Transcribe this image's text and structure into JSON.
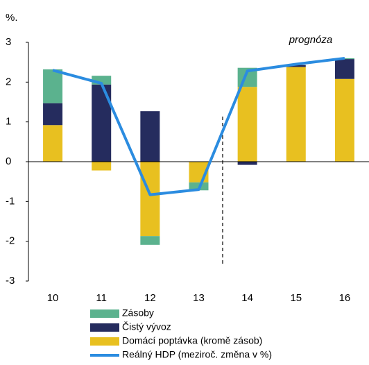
{
  "chart_data": {
    "type": "bar",
    "stacked": true,
    "unit_label": "%.",
    "annotation": "prognóza",
    "categories": [
      "10",
      "11",
      "12",
      "13",
      "14",
      "15",
      "16"
    ],
    "series": [
      {
        "name": "Zásoby",
        "color": "#5bb28e",
        "values": [
          0.85,
          0.22,
          -0.22,
          -0.2,
          0.48,
          0,
          0.02
        ]
      },
      {
        "name": "Čistý vývoz",
        "color": "#252c5e",
        "values": [
          0.55,
          1.94,
          1.27,
          0,
          -0.08,
          0.05,
          0.5
        ]
      },
      {
        "name": "Domácí poptávka (kromě zásob)",
        "color": "#e8c020",
        "values": [
          0.92,
          -0.22,
          -1.87,
          -0.52,
          1.88,
          2.38,
          2.08
        ]
      },
      {
        "name": "Reálný HDP (meziroč. změna v %)",
        "color": "#2b8ce0",
        "type": "line",
        "values": [
          2.3,
          1.97,
          -0.83,
          -0.7,
          2.28,
          2.45,
          2.6
        ]
      }
    ],
    "ylim": [
      -3,
      3
    ],
    "yticks": [
      -3,
      -2,
      -1,
      0,
      1,
      2,
      3
    ]
  }
}
